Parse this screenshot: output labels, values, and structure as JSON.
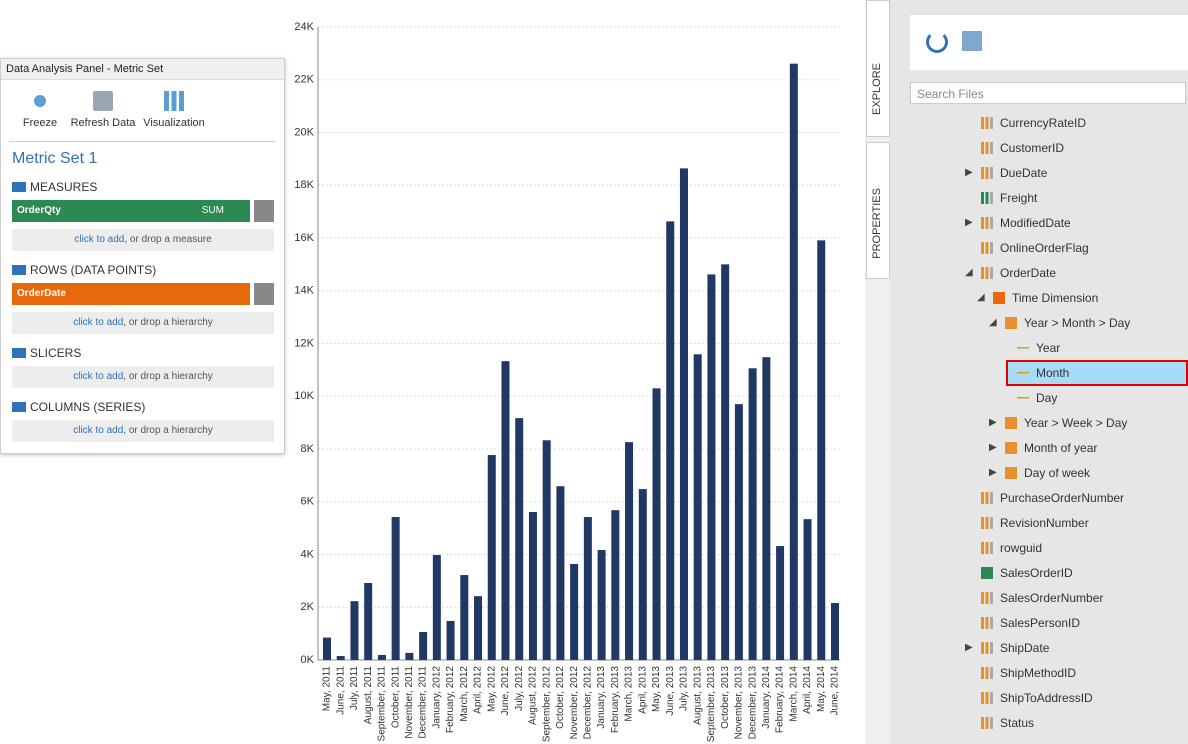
{
  "chart_data": {
    "type": "bar",
    "color": "#1f3864",
    "grid": true,
    "categories": [
      "May, 2011",
      "June, 2011",
      "July, 2011",
      "August, 2011",
      "September, 2011",
      "October, 2011",
      "November, 2011",
      "December, 2011",
      "January, 2012",
      "February, 2012",
      "March, 2012",
      "April, 2012",
      "May, 2012",
      "June, 2012",
      "July, 2012",
      "August, 2012",
      "September, 2012",
      "October, 2012",
      "November, 2012",
      "December, 2012",
      "January, 2013",
      "February, 2013",
      "March, 2013",
      "April, 2013",
      "May, 2013",
      "June, 2013",
      "July, 2013",
      "August, 2013",
      "September, 2013",
      "October, 2013",
      "November, 2013",
      "December, 2013",
      "January, 2014",
      "February, 2014",
      "March, 2014",
      "April, 2014",
      "May, 2014",
      "June, 2014"
    ],
    "values": [
      850,
      150,
      2230,
      2920,
      190,
      5420,
      270,
      1060,
      3980,
      1480,
      3220,
      2420,
      7770,
      11330,
      9170,
      5610,
      8330,
      6590,
      3640,
      5420,
      4170,
      5680,
      8260,
      6480,
      10300,
      16630,
      18640,
      11590,
      14620,
      15000,
      9700,
      11060,
      11480,
      4320,
      22610,
      5340,
      15910,
      2160
    ],
    "ylim": [
      0,
      24000
    ],
    "yticks": [
      {
        "value": 0,
        "label": "0K"
      },
      {
        "value": 2000,
        "label": "2K"
      },
      {
        "value": 4000,
        "label": "4K"
      },
      {
        "value": 6000,
        "label": "6K"
      },
      {
        "value": 8000,
        "label": "8K"
      },
      {
        "value": 10000,
        "label": "10K"
      },
      {
        "value": 12000,
        "label": "12K"
      },
      {
        "value": 14000,
        "label": "14K"
      },
      {
        "value": 16000,
        "label": "16K"
      },
      {
        "value": 18000,
        "label": "18K"
      },
      {
        "value": 20000,
        "label": "20K"
      },
      {
        "value": 22000,
        "label": "22K"
      },
      {
        "value": 24000,
        "label": "24K"
      }
    ]
  },
  "analysis_panel": {
    "title": "Data Analysis Panel - Metric Set",
    "buttons": [
      "Freeze",
      "Refresh Data",
      "Visualization"
    ],
    "metric_set": "Metric Set 1",
    "sections": [
      "MEASURES",
      "ROWS (DATA POINTS)",
      "SLICERS",
      "COLUMNS (SERIES)"
    ],
    "measure": {
      "name": "OrderQty",
      "aggregate": "SUM"
    },
    "row": {
      "name": "OrderDate"
    },
    "drop_zones": [
      {
        "link": "click to add",
        "text": ", or drop a measure"
      },
      {
        "link": "click to add",
        "text": ", or drop a hierarchy"
      },
      {
        "link": "click to add",
        "text": ", or drop a hierarchy"
      },
      {
        "link": "click to add",
        "text": ", or drop a hierarchy"
      }
    ]
  },
  "explorer": {
    "tabs": [
      "EXPLORE",
      "PROPERTIES"
    ],
    "search_placeholder": "Search Files",
    "items": [
      "CurrencyRateID",
      "CustomerID",
      "DueDate",
      "Freight",
      "ModifiedDate",
      "OnlineOrderFlag",
      "OrderDate",
      "Time Dimension",
      "Year > Month > Day",
      "Year",
      "Month",
      "Day",
      "Year > Week > Day",
      "Month of year",
      "Day of week",
      "PurchaseOrderNumber",
      "RevisionNumber",
      "rowguid",
      "SalesOrderID",
      "SalesOrderNumber",
      "SalesPersonID",
      "ShipDate",
      "ShipMethodID",
      "ShipToAddressID",
      "Status"
    ],
    "selected_item": 10
  }
}
